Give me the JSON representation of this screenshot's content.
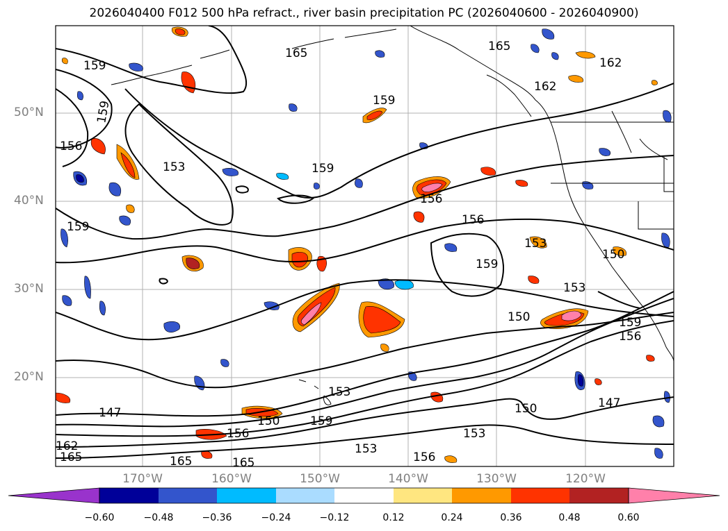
{
  "title": "2026040400 F012 500 hPa refract., river basin precipitation PC (2026040600 - 2026040900)",
  "map": {
    "latitude_labels": [
      "50°N",
      "40°N",
      "30°N",
      "20°N"
    ],
    "longitude_labels": [
      "170°W",
      "160°W",
      "150°W",
      "140°W",
      "130°W",
      "120°W"
    ],
    "contour_labels": [
      "165",
      "165",
      "162",
      "162",
      "159",
      "159",
      "153",
      "156",
      "159",
      "159",
      "156",
      "156",
      "153",
      "150",
      "159",
      "153",
      "150",
      "159",
      "156",
      "147",
      "150",
      "159",
      "153",
      "147",
      "150",
      "153",
      "156",
      "156",
      "153",
      "162",
      "165",
      "165",
      "165",
      "159"
    ]
  },
  "colorbar": {
    "ticks": [
      "−0.60",
      "−0.48",
      "−0.36",
      "−0.24",
      "−0.12",
      "0.12",
      "0.24",
      "0.36",
      "0.48",
      "0.60"
    ],
    "colors": [
      "#9933cc",
      "#000099",
      "#3355cc",
      "#00bbff",
      "#aadcff",
      "#ffffff",
      "#ffe680",
      "#ff9900",
      "#ff3300",
      "#b22222",
      "#ff80aa"
    ]
  }
}
